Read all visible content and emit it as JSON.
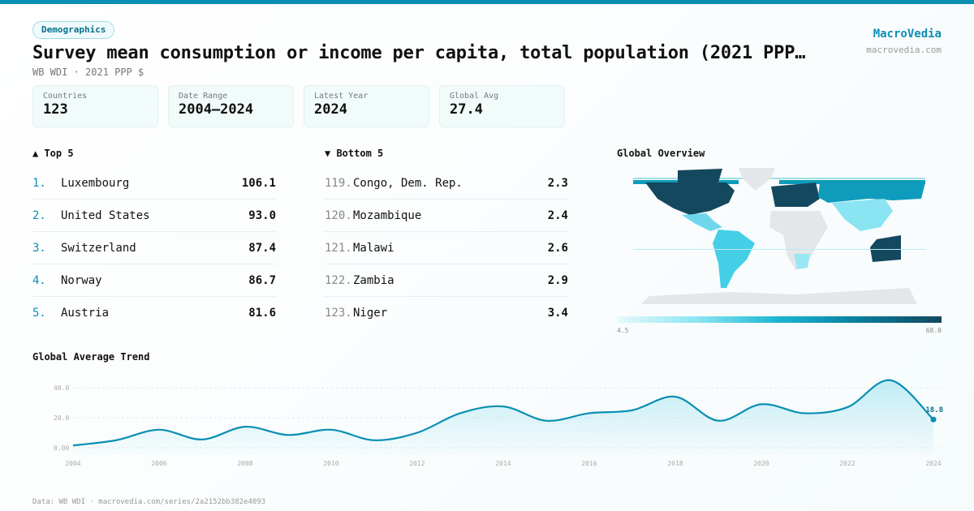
{
  "category": "Demographics",
  "title": "Survey mean consumption or income per capita, total population (2021 PPP…",
  "subtitle": "WB WDI · 2021 PPP $",
  "brand": {
    "name": "MacroVedia",
    "url": "macrovedia.com"
  },
  "stats": [
    {
      "label": "Countries",
      "value": "123"
    },
    {
      "label": "Date Range",
      "value": "2004–2024"
    },
    {
      "label": "Latest Year",
      "value": "2024"
    },
    {
      "label": "Global Avg",
      "value": "27.4"
    }
  ],
  "top5": {
    "heading": "▲ Top 5",
    "items": [
      {
        "rank": "1.",
        "name": "Luxembourg",
        "value": "106.1"
      },
      {
        "rank": "2.",
        "name": "United States",
        "value": "93.0"
      },
      {
        "rank": "3.",
        "name": "Switzerland",
        "value": "87.4"
      },
      {
        "rank": "4.",
        "name": "Norway",
        "value": "86.7"
      },
      {
        "rank": "5.",
        "name": "Austria",
        "value": "81.6"
      }
    ]
  },
  "bottom5": {
    "heading": "▼ Bottom 5",
    "items": [
      {
        "rank": "119.",
        "name": "Congo, Dem. Rep.",
        "value": "2.3"
      },
      {
        "rank": "120.",
        "name": "Mozambique",
        "value": "2.4"
      },
      {
        "rank": "121.",
        "name": "Malawi",
        "value": "2.6"
      },
      {
        "rank": "122.",
        "name": "Zambia",
        "value": "2.9"
      },
      {
        "rank": "123.",
        "name": "Niger",
        "value": "3.4"
      }
    ]
  },
  "map": {
    "heading": "Global Overview",
    "legend_min": "4.5",
    "legend_max": "68.0",
    "colors": {
      "low": "#e8f9fc",
      "mid": "#1ab5d3",
      "high": "#14485e",
      "nodata": "#e4e6e9"
    }
  },
  "chart_data": {
    "type": "area",
    "title": "Global Average Trend",
    "x": [
      2004,
      2005,
      2006,
      2007,
      2008,
      2009,
      2010,
      2011,
      2012,
      2013,
      2014,
      2015,
      2016,
      2017,
      2018,
      2019,
      2020,
      2021,
      2022,
      2023,
      2024
    ],
    "values": [
      1.5,
      5,
      12,
      5.5,
      14,
      8.5,
      12,
      5,
      10,
      23,
      27.5,
      18,
      23,
      25,
      34,
      18,
      29,
      23,
      27,
      45,
      18.8
    ],
    "xticks": [
      "2004",
      "2006",
      "2008",
      "2010",
      "2012",
      "2014",
      "2016",
      "2018",
      "2020",
      "2022",
      "2024"
    ],
    "yticks": [
      "0.00",
      "20.0",
      "40.0"
    ],
    "ylim": [
      0,
      48
    ],
    "last_label": "18.8",
    "color": "#0a8fb3",
    "grid": true
  },
  "footer": "Data: WB WDI · macrovedia.com/series/2a2152bb382e4093"
}
